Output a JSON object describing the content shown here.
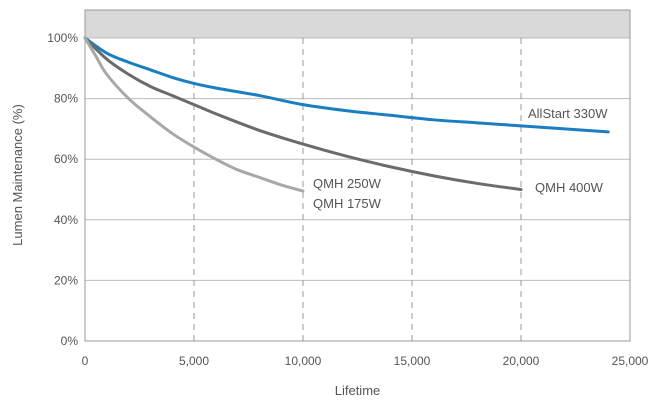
{
  "chart_data": {
    "type": "line",
    "xlabel": "Lifetime",
    "ylabel": "Lumen Maintenance (%)",
    "xlim": [
      0,
      25000
    ],
    "ylim": [
      0,
      100
    ],
    "x_ticks": [
      "0",
      "5,000",
      "10,000",
      "15,000",
      "20,000",
      "25,000"
    ],
    "y_ticks": [
      "0%",
      "20%",
      "40%",
      "60%",
      "80%",
      "100%"
    ],
    "grid": "horizontal solid, vertical dashed",
    "top_band_color": "#d9d9d9",
    "series": [
      {
        "name": "AllStart 330W",
        "color": "#1a7fc1",
        "x": [
          0,
          1000,
          2000,
          3000,
          4000,
          5000,
          6000,
          8000,
          10000,
          12000,
          14000,
          16000,
          18000,
          20000,
          22000,
          24000
        ],
        "y": [
          100,
          95,
          92,
          89.5,
          87,
          85,
          83.5,
          81,
          78,
          76,
          74.5,
          73,
          72,
          71,
          70,
          69
        ]
      },
      {
        "name": "QMH 400W",
        "color": "#6b6b6b",
        "x": [
          0,
          1000,
          2000,
          3000,
          4000,
          5000,
          6000,
          8000,
          10000,
          12000,
          14000,
          16000,
          18000,
          20000
        ],
        "y": [
          100,
          93,
          88,
          84,
          81,
          78,
          75,
          69.5,
          65,
          61,
          57.5,
          54.5,
          52,
          50
        ]
      },
      {
        "name": "QMH 250W",
        "label_line2": "QMH 175W",
        "color": "#a8a8a8",
        "x": [
          0,
          500,
          1000,
          2000,
          3000,
          4000,
          5000,
          6000,
          7000,
          8000,
          9000,
          10000
        ],
        "y": [
          100,
          94,
          88,
          80,
          74,
          68.5,
          64,
          60,
          56.5,
          54,
          51.5,
          49.5
        ]
      }
    ]
  }
}
